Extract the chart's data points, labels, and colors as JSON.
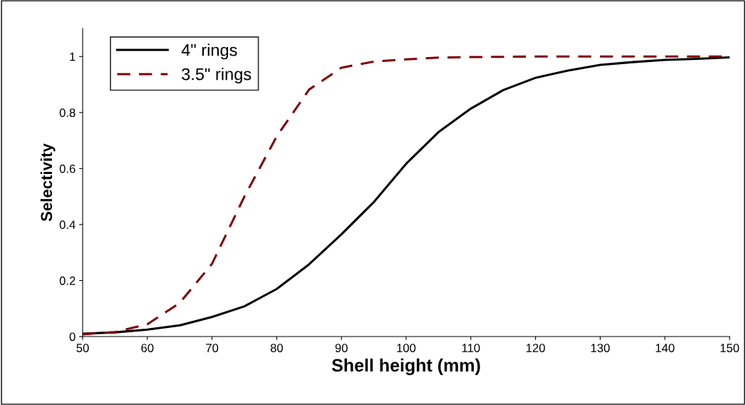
{
  "chart_data": {
    "type": "line",
    "xlabel": "Shell height (mm)",
    "ylabel": "Selectivity",
    "x": [
      50,
      55,
      60,
      65,
      70,
      75,
      80,
      85,
      90,
      95,
      100,
      105,
      110,
      115,
      120,
      125,
      130,
      135,
      140,
      145,
      150
    ],
    "series": [
      {
        "name": "4\" rings",
        "color": "#000000",
        "line_style": "solid",
        "values": [
          0.01,
          0.015,
          0.025,
          0.04,
          0.07,
          0.108,
          0.17,
          0.258,
          0.365,
          0.48,
          0.617,
          0.73,
          0.814,
          0.88,
          0.924,
          0.95,
          0.97,
          0.98,
          0.988,
          0.992,
          0.997
        ]
      },
      {
        "name": "3.5\" rings",
        "color": "#800000",
        "line_style": "dashed",
        "values": [
          0.008,
          0.016,
          0.044,
          0.12,
          0.26,
          0.5,
          0.715,
          0.882,
          0.96,
          0.982,
          0.99,
          0.996,
          0.998,
          0.999,
          1.0,
          1.0,
          1.0,
          1.0,
          1.0,
          1.0,
          1.0
        ]
      }
    ],
    "xlim": [
      50,
      150
    ],
    "xticks": [
      50,
      60,
      70,
      80,
      90,
      100,
      110,
      120,
      130,
      140,
      150
    ],
    "ylim": [
      0,
      1.1
    ],
    "yticks": [
      0,
      0.2,
      0.4,
      0.6,
      0.8,
      1
    ],
    "grid": false,
    "legend": "top left",
    "marker": "none"
  }
}
